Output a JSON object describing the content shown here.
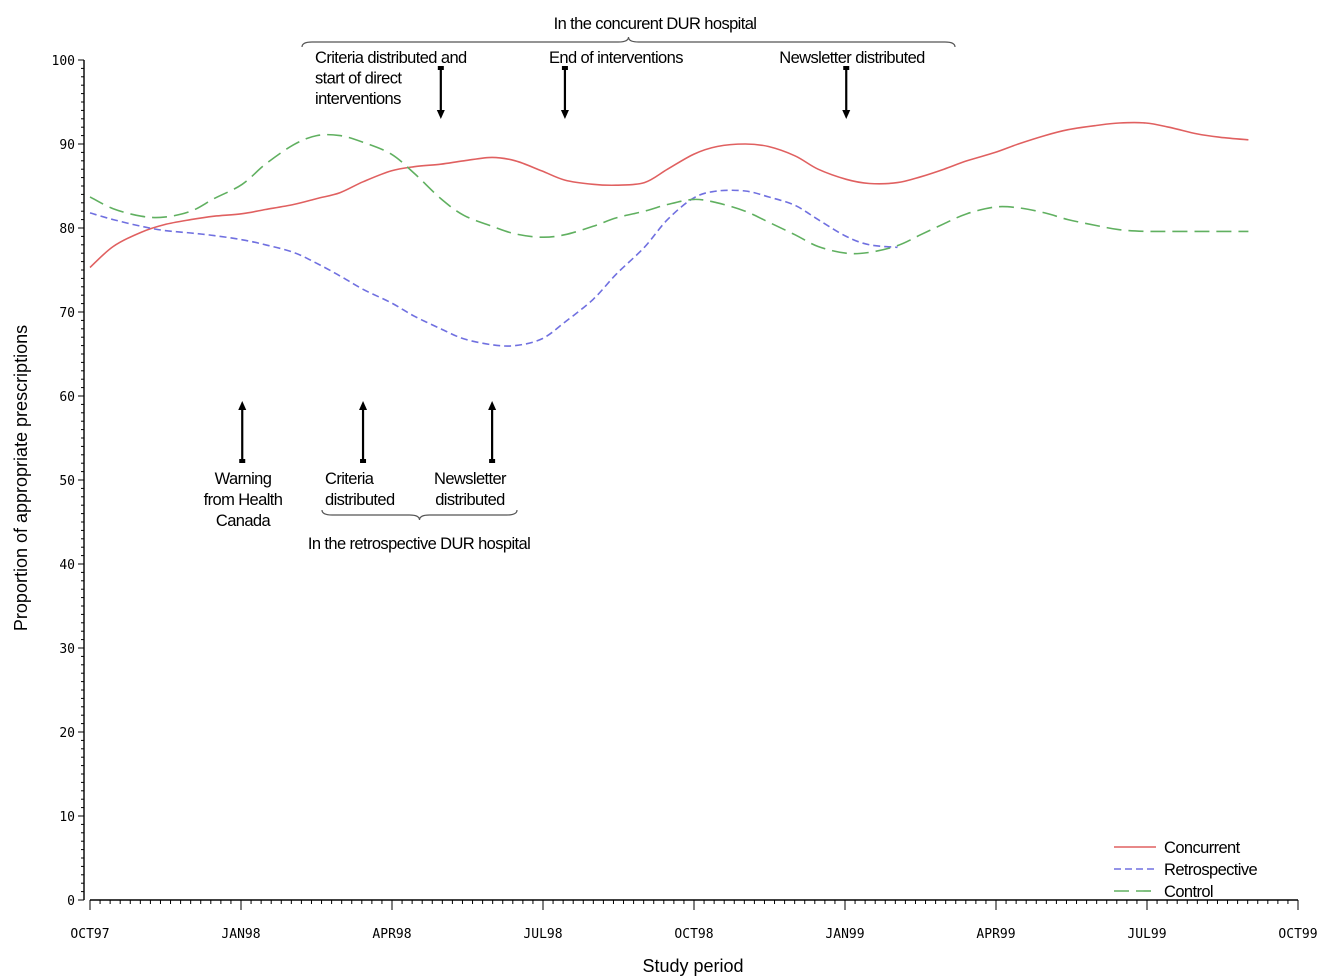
{
  "chart_data": {
    "type": "line",
    "title": "",
    "xlabel": "Study period",
    "ylabel": "Proportion of appropriate prescriptions",
    "x_ticks": [
      "OCT97",
      "JAN98",
      "APR98",
      "JUL98",
      "OCT98",
      "JAN99",
      "APR99",
      "JUL99",
      "OCT99"
    ],
    "ylim": [
      0,
      100
    ],
    "y_ticks": [
      0,
      10,
      20,
      30,
      40,
      50,
      60,
      70,
      80,
      90,
      100
    ],
    "grid": false,
    "legend_position": "bottom-right",
    "series": [
      {
        "name": "Concurrent",
        "color": "#e06060",
        "dash": "solid",
        "points": [
          [
            "1997-10-01",
            75.3
          ],
          [
            "1997-10-15",
            77.8
          ],
          [
            "1997-11-01",
            79.5
          ],
          [
            "1997-11-15",
            80.4
          ],
          [
            "1997-12-01",
            81.0
          ],
          [
            "1997-12-15",
            81.4
          ],
          [
            "1998-01-01",
            81.7
          ],
          [
            "1998-01-15",
            82.2
          ],
          [
            "1998-02-01",
            82.8
          ],
          [
            "1998-02-15",
            83.5
          ],
          [
            "1998-03-01",
            84.2
          ],
          [
            "1998-03-15",
            85.5
          ],
          [
            "1998-04-01",
            86.8
          ],
          [
            "1998-04-15",
            87.3
          ],
          [
            "1998-05-01",
            87.6
          ],
          [
            "1998-05-15",
            88.0
          ],
          [
            "1998-06-01",
            88.4
          ],
          [
            "1998-06-15",
            88.0
          ],
          [
            "1998-07-01",
            86.8
          ],
          [
            "1998-07-15",
            85.7
          ],
          [
            "1998-08-01",
            85.2
          ],
          [
            "1998-08-15",
            85.1
          ],
          [
            "1998-09-01",
            85.4
          ],
          [
            "1998-09-15",
            87.0
          ],
          [
            "1998-10-01",
            88.8
          ],
          [
            "1998-10-15",
            89.7
          ],
          [
            "1998-11-01",
            90.0
          ],
          [
            "1998-11-15",
            89.7
          ],
          [
            "1998-12-01",
            88.6
          ],
          [
            "1998-12-15",
            87.0
          ],
          [
            "1999-01-01",
            85.8
          ],
          [
            "1999-01-15",
            85.3
          ],
          [
            "1999-02-01",
            85.4
          ],
          [
            "1999-02-15",
            86.1
          ],
          [
            "1999-03-01",
            87.0
          ],
          [
            "1999-03-15",
            88.0
          ],
          [
            "1999-04-01",
            89.0
          ],
          [
            "1999-04-15",
            90.0
          ],
          [
            "1999-05-01",
            91.0
          ],
          [
            "1999-05-15",
            91.7
          ],
          [
            "1999-06-01",
            92.2
          ],
          [
            "1999-06-15",
            92.5
          ],
          [
            "1999-07-01",
            92.5
          ],
          [
            "1999-07-15",
            92.0
          ],
          [
            "1999-08-01",
            91.2
          ],
          [
            "1999-08-15",
            90.8
          ],
          [
            "1999-09-01",
            90.5
          ]
        ]
      },
      {
        "name": "Retrospective",
        "color": "#7070e0",
        "dash": "short",
        "points": [
          [
            "1997-10-01",
            81.8
          ],
          [
            "1997-10-15",
            81.0
          ],
          [
            "1997-11-01",
            80.2
          ],
          [
            "1997-11-15",
            79.7
          ],
          [
            "1997-12-01",
            79.4
          ],
          [
            "1997-12-15",
            79.1
          ],
          [
            "1998-01-01",
            78.6
          ],
          [
            "1998-01-15",
            78.0
          ],
          [
            "1998-02-01",
            77.1
          ],
          [
            "1998-02-15",
            75.8
          ],
          [
            "1998-03-01",
            74.3
          ],
          [
            "1998-03-15",
            72.7
          ],
          [
            "1998-04-01",
            71.1
          ],
          [
            "1998-04-15",
            69.5
          ],
          [
            "1998-05-01",
            68.0
          ],
          [
            "1998-05-15",
            66.8
          ],
          [
            "1998-06-01",
            66.1
          ],
          [
            "1998-06-15",
            66.0
          ],
          [
            "1998-07-01",
            66.8
          ],
          [
            "1998-07-15",
            68.8
          ],
          [
            "1998-08-01",
            71.5
          ],
          [
            "1998-08-15",
            74.5
          ],
          [
            "1998-09-01",
            77.7
          ],
          [
            "1998-09-15",
            81.0
          ],
          [
            "1998-10-01",
            83.6
          ],
          [
            "1998-10-15",
            84.4
          ],
          [
            "1998-11-01",
            84.4
          ],
          [
            "1998-11-15",
            83.7
          ],
          [
            "1998-12-01",
            82.7
          ],
          [
            "1998-12-15",
            81.0
          ],
          [
            "1999-01-01",
            79.0
          ],
          [
            "1999-01-15",
            78.0
          ],
          [
            "1999-02-01",
            77.7
          ]
        ]
      },
      {
        "name": "Control",
        "color": "#60b060",
        "dash": "long",
        "points": [
          [
            "1997-10-01",
            83.7
          ],
          [
            "1997-10-15",
            82.3
          ],
          [
            "1997-11-01",
            81.4
          ],
          [
            "1997-11-15",
            81.3
          ],
          [
            "1997-12-01",
            82.0
          ],
          [
            "1997-12-15",
            83.5
          ],
          [
            "1998-01-01",
            85.2
          ],
          [
            "1998-01-15",
            87.6
          ],
          [
            "1998-02-01",
            89.9
          ],
          [
            "1998-02-15",
            91.0
          ],
          [
            "1998-03-01",
            91.0
          ],
          [
            "1998-03-15",
            90.2
          ],
          [
            "1998-04-01",
            88.8
          ],
          [
            "1998-04-15",
            86.5
          ],
          [
            "1998-05-01",
            83.5
          ],
          [
            "1998-05-15",
            81.5
          ],
          [
            "1998-06-01",
            80.2
          ],
          [
            "1998-06-15",
            79.3
          ],
          [
            "1998-07-01",
            78.9
          ],
          [
            "1998-07-15",
            79.2
          ],
          [
            "1998-08-01",
            80.2
          ],
          [
            "1998-08-15",
            81.2
          ],
          [
            "1998-09-01",
            82.0
          ],
          [
            "1998-09-15",
            82.8
          ],
          [
            "1998-10-01",
            83.4
          ],
          [
            "1998-10-15",
            83.0
          ],
          [
            "1998-11-01",
            82.0
          ],
          [
            "1998-11-15",
            80.7
          ],
          [
            "1998-12-01",
            79.2
          ],
          [
            "1998-12-15",
            77.8
          ],
          [
            "1999-01-01",
            77.0
          ],
          [
            "1999-01-15",
            77.1
          ],
          [
            "1999-02-01",
            77.9
          ],
          [
            "1999-02-15",
            79.2
          ],
          [
            "1999-03-01",
            80.5
          ],
          [
            "1999-03-15",
            81.7
          ],
          [
            "1999-04-01",
            82.5
          ],
          [
            "1999-04-15",
            82.4
          ],
          [
            "1999-05-01",
            81.8
          ],
          [
            "1999-05-15",
            81.0
          ],
          [
            "1999-06-01",
            80.3
          ],
          [
            "1999-06-15",
            79.8
          ],
          [
            "1999-07-01",
            79.6
          ],
          [
            "1999-07-15",
            79.6
          ],
          [
            "1999-08-01",
            79.6
          ],
          [
            "1999-08-15",
            79.6
          ],
          [
            "1999-09-01",
            79.6
          ]
        ]
      }
    ],
    "annotations": {
      "concurrent_group_label": "In the concurent DUR hospital",
      "retrospective_group_label": "In the retrospective DUR hospital",
      "concurrent_events": [
        {
          "date": "1998-05-01",
          "lines": [
            "Criteria distributed and",
            "start of direct",
            "interventions"
          ]
        },
        {
          "date": "1998-07-15",
          "lines": [
            "End of interventions"
          ]
        },
        {
          "date": "1999-01-01",
          "lines": [
            "Newsletter distributed"
          ]
        }
      ],
      "retrospective_events": [
        {
          "date": "1998-01-01",
          "lines": [
            "Warning",
            "from Health",
            "Canada"
          ]
        },
        {
          "date": "1998-03-15",
          "lines": [
            "Criteria",
            "distributed"
          ]
        },
        {
          "date": "1998-06-01",
          "lines": [
            "Newsletter",
            "distributed"
          ]
        }
      ]
    }
  }
}
